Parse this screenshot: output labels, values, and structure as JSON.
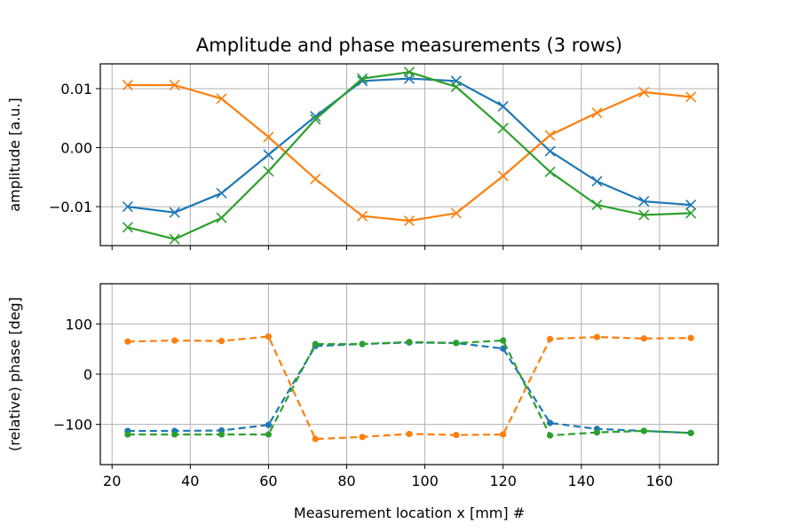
{
  "chart_data": {
    "type": "line",
    "title": "Amplitude and phase measurements (3 rows)",
    "xlabel": "Measurement location x [mm] #",
    "xlim": [
      17,
      175
    ],
    "x_ticks": [
      20,
      40,
      60,
      80,
      100,
      120,
      140,
      160
    ],
    "x_tick_labels": [
      "20",
      "40",
      "60",
      "80",
      "100",
      "120",
      "140",
      "160"
    ],
    "colors": [
      "#1f77b4",
      "#ff7f0e",
      "#2ca02c"
    ],
    "x": [
      24,
      36,
      48,
      60,
      72,
      84,
      96,
      108,
      120,
      132,
      144,
      156,
      168
    ],
    "grid": true,
    "panels": [
      {
        "ylabel": "amplitude [a.u.]",
        "ylim": [
          -0.0166,
          0.0142
        ],
        "y_ticks": [
          -0.01,
          0.0,
          0.01
        ],
        "y_tick_labels": [
          "−0.01",
          "0.00",
          "0.01"
        ],
        "marker": "x",
        "line_style": "solid",
        "series": [
          {
            "values": [
              -0.01,
              -0.011,
              -0.0077,
              -0.0012,
              0.0053,
              0.0113,
              0.0117,
              0.0113,
              0.007,
              -0.0006,
              -0.0057,
              -0.0091,
              -0.0097
            ]
          },
          {
            "values": [
              0.0106,
              0.0106,
              0.0083,
              0.0018,
              -0.0053,
              -0.0116,
              -0.0124,
              -0.0111,
              -0.0048,
              0.0021,
              0.0059,
              0.0094,
              0.0086
            ]
          },
          {
            "values": [
              -0.0135,
              -0.0155,
              -0.0119,
              -0.004,
              0.0048,
              0.0117,
              0.0128,
              0.0103,
              0.0033,
              -0.0041,
              -0.0097,
              -0.0114,
              -0.0111
            ]
          }
        ]
      },
      {
        "ylabel": "(relative) phase [deg]",
        "ylim": [
          -180,
          180
        ],
        "y_ticks": [
          -100,
          0,
          100
        ],
        "y_tick_labels": [
          "−100",
          "0",
          "100"
        ],
        "marker": "dot",
        "line_style": "dashed",
        "series": [
          {
            "values": [
              -113,
              -113,
              -112,
              -101,
              56,
              60,
              63,
              62,
              51,
              -97,
              -109,
              -113,
              -117
            ]
          },
          {
            "values": [
              65,
              67,
              66,
              75,
              -129,
              -125,
              -119,
              -121,
              -120,
              70,
              74,
              71,
              72
            ]
          },
          {
            "values": [
              -120,
              -120,
              -120,
              -120,
              60,
              60,
              64,
              62,
              67,
              -122,
              -116,
              -113,
              -117
            ]
          }
        ]
      }
    ]
  }
}
